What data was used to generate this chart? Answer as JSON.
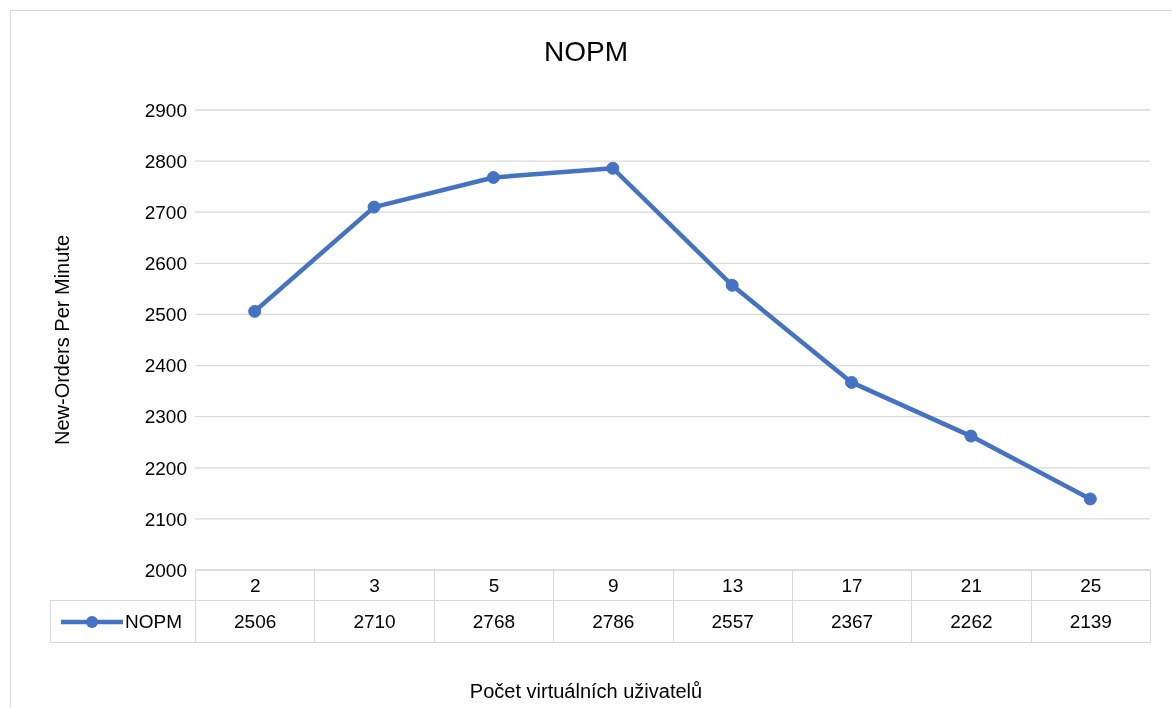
{
  "chart_data": {
    "type": "line",
    "title": "NOPM",
    "xlabel": "Počet virtuálních uživatelů",
    "ylabel": "New-Orders Per Minute",
    "categories": [
      "2",
      "3",
      "5",
      "9",
      "13",
      "17",
      "21",
      "25"
    ],
    "series": [
      {
        "name": "NOPM",
        "color": "#4472c4",
        "values": [
          2506,
          2710,
          2768,
          2786,
          2557,
          2367,
          2262,
          2139
        ]
      }
    ],
    "ylim": [
      2000,
      2900
    ],
    "yticks": [
      2000,
      2100,
      2200,
      2300,
      2400,
      2500,
      2600,
      2700,
      2800,
      2900
    ],
    "grid": "y",
    "legend": "bottom",
    "marker": "circle",
    "line_style": "solid",
    "data_labels": true
  }
}
